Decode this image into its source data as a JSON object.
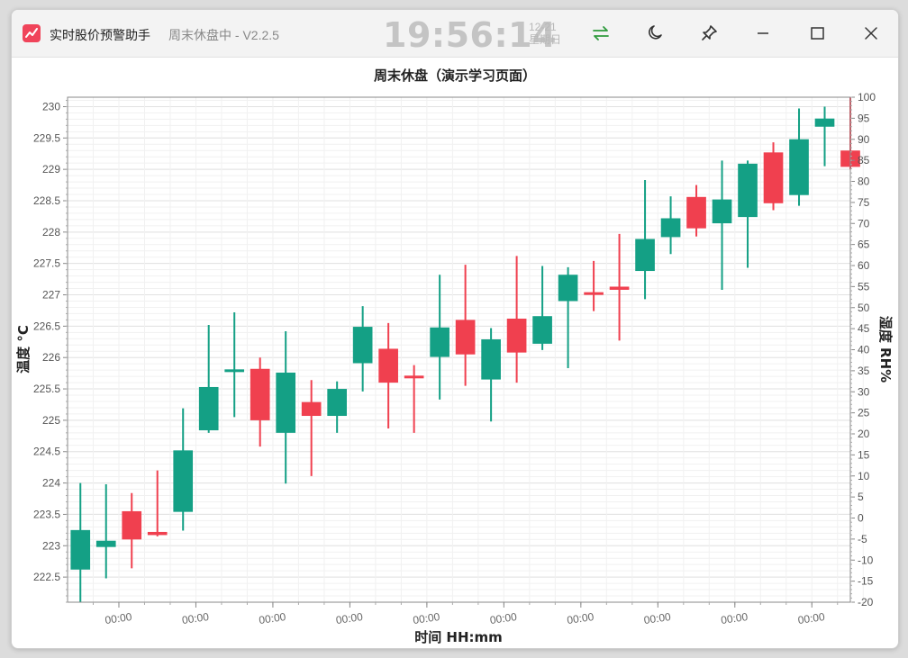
{
  "window": {
    "app_name": "实时股价预警助手",
    "subtitle": "周末休盘中 - V2.2.5",
    "clock": "19:56:14",
    "date": "12-21",
    "weekday": "星期日"
  },
  "icons": {
    "app": "trend-chart-icon",
    "swap": "swap-arrows-icon",
    "theme": "moon-icon",
    "pin": "pin-icon",
    "minimize": "minimize-icon",
    "maximize": "maximize-icon",
    "close": "close-icon"
  },
  "colors": {
    "up": "#f0404f",
    "down": "#14a085",
    "swap_icon": "#2e9a3c"
  },
  "chart_data": {
    "type": "candlestick",
    "title": "周末休盘（演示学习页面）",
    "xlabel": "时间 HH:mm",
    "ylabel": "温度 °C",
    "y2label": "湿度 RH%",
    "ylim": [
      222.1,
      230.15
    ],
    "y2lim": [
      -20,
      100
    ],
    "yticks": [
      222.5,
      223,
      223.5,
      224,
      224.5,
      225,
      225.5,
      226,
      226.5,
      227,
      227.5,
      228,
      228.5,
      229,
      229.5,
      230
    ],
    "y2ticks": [
      -20,
      -15,
      -10,
      -5,
      0,
      5,
      10,
      15,
      20,
      25,
      30,
      35,
      40,
      45,
      50,
      55,
      60,
      65,
      70,
      75,
      80,
      85,
      90,
      95,
      100
    ],
    "xtick_labels": [
      "00:00",
      "00:00",
      "00:00",
      "00:00",
      "00:00",
      "00:00",
      "00:00",
      "00:00",
      "00:00",
      "00:00"
    ],
    "grid": true,
    "candles": [
      {
        "open": 223.25,
        "close": 222.62,
        "high": 224.0,
        "low": 222.1
      },
      {
        "open": 223.08,
        "close": 222.98,
        "high": 223.98,
        "low": 222.48
      },
      {
        "open": 223.1,
        "close": 223.55,
        "high": 223.84,
        "low": 222.64
      },
      {
        "open": 223.17,
        "close": 223.22,
        "high": 224.2,
        "low": 223.15
      },
      {
        "open": 224.52,
        "close": 223.54,
        "high": 225.19,
        "low": 223.24
      },
      {
        "open": 225.53,
        "close": 224.84,
        "high": 226.52,
        "low": 224.8
      },
      {
        "open": 225.79,
        "close": 225.75,
        "high": 226.72,
        "low": 225.05
      },
      {
        "open": 225.0,
        "close": 225.82,
        "high": 226.0,
        "low": 224.58
      },
      {
        "open": 225.76,
        "close": 224.8,
        "high": 226.42,
        "low": 223.99
      },
      {
        "open": 225.07,
        "close": 225.29,
        "high": 225.64,
        "low": 224.11
      },
      {
        "open": 225.5,
        "close": 225.07,
        "high": 225.62,
        "low": 224.8
      },
      {
        "open": 226.49,
        "close": 225.91,
        "high": 226.82,
        "low": 225.46
      },
      {
        "open": 225.6,
        "close": 226.14,
        "high": 226.55,
        "low": 224.87
      },
      {
        "open": 225.69,
        "close": 225.69,
        "high": 225.88,
        "low": 224.8
      },
      {
        "open": 226.48,
        "close": 226.01,
        "high": 227.32,
        "low": 225.33
      },
      {
        "open": 226.05,
        "close": 226.6,
        "high": 227.48,
        "low": 225.55
      },
      {
        "open": 226.29,
        "close": 225.65,
        "high": 226.47,
        "low": 224.98
      },
      {
        "open": 226.08,
        "close": 226.62,
        "high": 227.62,
        "low": 225.6
      },
      {
        "open": 226.66,
        "close": 226.22,
        "high": 227.46,
        "low": 226.12
      },
      {
        "open": 227.32,
        "close": 226.9,
        "high": 227.44,
        "low": 225.83
      },
      {
        "open": 226.98,
        "close": 227.02,
        "high": 227.54,
        "low": 226.74
      },
      {
        "open": 227.08,
        "close": 227.13,
        "high": 227.97,
        "low": 226.27
      },
      {
        "open": 227.89,
        "close": 227.38,
        "high": 228.83,
        "low": 226.93
      },
      {
        "open": 228.22,
        "close": 227.92,
        "high": 228.57,
        "low": 227.65
      },
      {
        "open": 228.06,
        "close": 228.56,
        "high": 228.75,
        "low": 227.93
      },
      {
        "open": 228.52,
        "close": 228.14,
        "high": 229.14,
        "low": 227.08
      },
      {
        "open": 229.09,
        "close": 228.24,
        "high": 229.14,
        "low": 227.43
      },
      {
        "open": 228.46,
        "close": 229.27,
        "high": 229.43,
        "low": 228.35
      },
      {
        "open": 229.48,
        "close": 228.59,
        "high": 229.97,
        "low": 228.42
      },
      {
        "open": 229.81,
        "close": 229.68,
        "high": 230.0,
        "low": 229.05
      },
      {
        "open": 229.04,
        "close": 229.3,
        "high": 230.15,
        "low": 229.0
      }
    ]
  }
}
